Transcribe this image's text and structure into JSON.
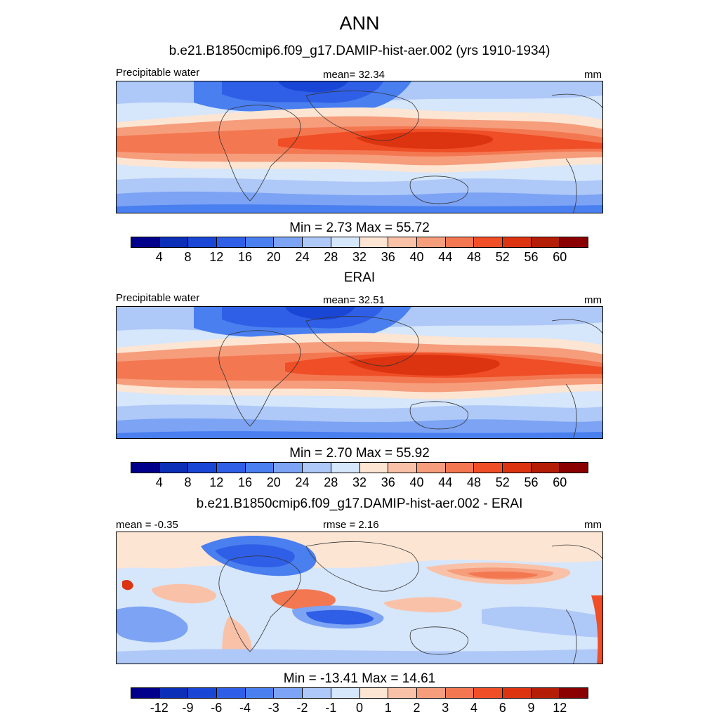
{
  "title": "ANN",
  "colors": {
    "abs_palette": [
      "#00008b",
      "#0c2fb8",
      "#1a46d6",
      "#2f5fe6",
      "#4a7ff0",
      "#7ca3f4",
      "#aec8f8",
      "#d6e6fb",
      "#fde5d3",
      "#f9c2a8",
      "#f69d7c",
      "#f37852",
      "#ef4e26",
      "#dc3410",
      "#b41d06",
      "#8a0000"
    ],
    "diff_palette": [
      "#00008b",
      "#0c2fb8",
      "#1a46d6",
      "#2f5fe6",
      "#4a7ff0",
      "#7ca3f4",
      "#aec8f8",
      "#d6e6fb",
      "#fde5d3",
      "#f9c2a8",
      "#f69d7c",
      "#f37852",
      "#ef4e26",
      "#dc3410",
      "#b41d06",
      "#8a0000"
    ]
  },
  "panels": [
    {
      "subtitle": "b.e21.B1850cmip6.f09_g17.DAMIP-hist-aer.002 (yrs 1910-1934)",
      "left_label": "Precipitable water",
      "center_label": "mean=  32.34",
      "right_label": "mm",
      "minmax": "Min =   2.73 Max =  55.72",
      "ticks": [
        "4",
        "8",
        "12",
        "16",
        "20",
        "24",
        "28",
        "32",
        "36",
        "40",
        "44",
        "48",
        "52",
        "56",
        "60"
      ]
    },
    {
      "subtitle": "ERAI",
      "left_label": "Precipitable water",
      "center_label": "mean=  32.51",
      "right_label": "mm",
      "minmax": "Min =   2.70 Max =  55.92",
      "ticks": [
        "4",
        "8",
        "12",
        "16",
        "20",
        "24",
        "28",
        "32",
        "36",
        "40",
        "44",
        "48",
        "52",
        "56",
        "60"
      ]
    },
    {
      "subtitle": "b.e21.B1850cmip6.f09_g17.DAMIP-hist-aer.002 - ERAI",
      "left_label": "mean =  -0.35",
      "center_label": "rmse =   2.16",
      "right_label": "mm",
      "minmax": "Min = -13.41 Max =  14.61",
      "ticks": [
        "-12",
        "-9",
        "-6",
        "-4",
        "-3",
        "-2",
        "-1",
        "0",
        "1",
        "2",
        "3",
        "4",
        "6",
        "9",
        "12"
      ]
    }
  ]
}
